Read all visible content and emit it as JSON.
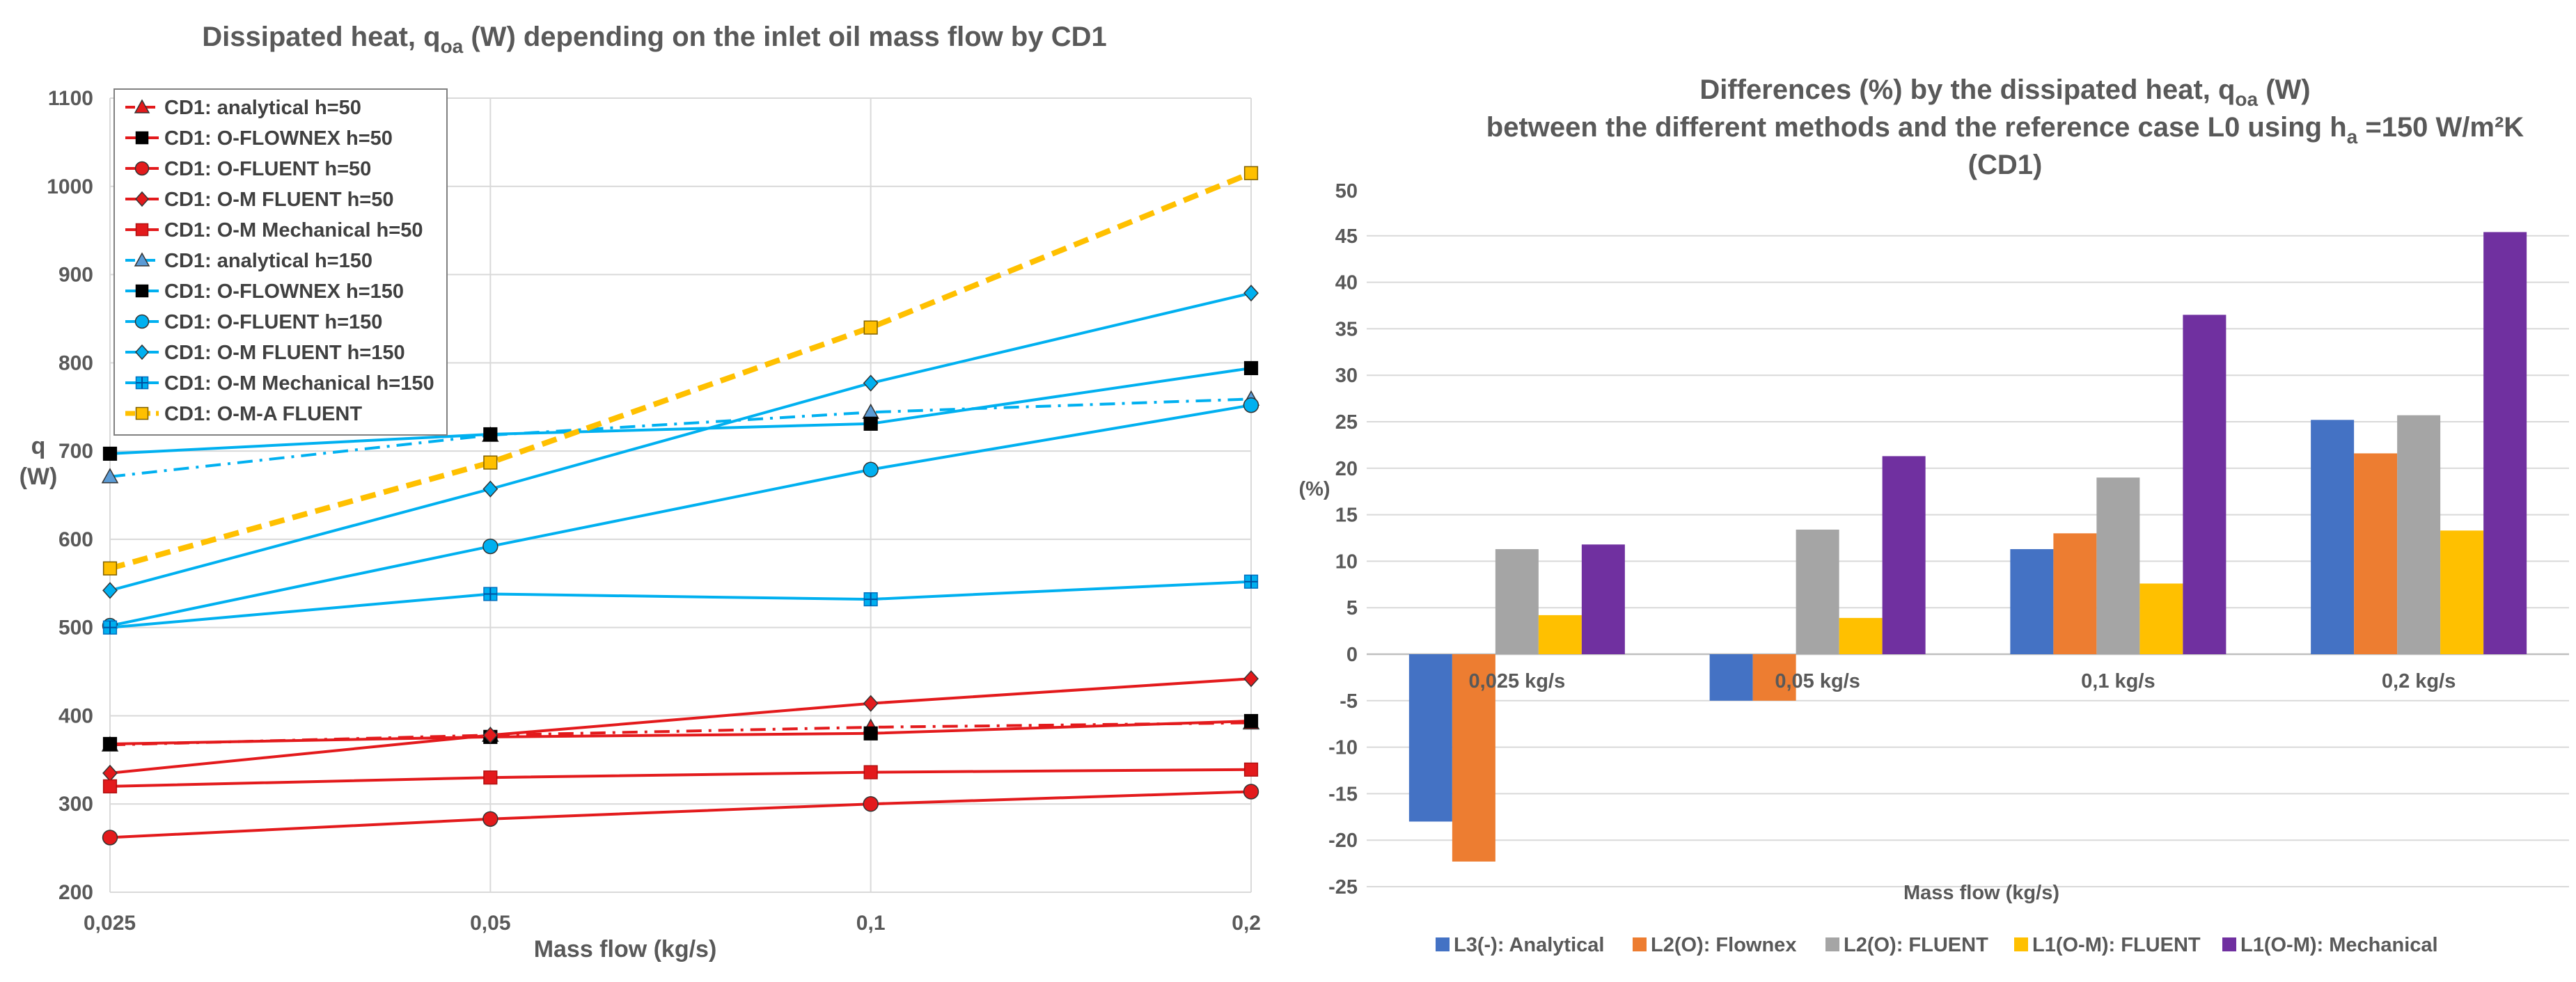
{
  "chart_data": [
    {
      "type": "line",
      "title": "Dissipated heat, q",
      "title_sub": "oa",
      "title_rest": " (W) depending on the inlet oil mass flow by CD1",
      "xlabel": "Mass flow (kg/s)",
      "ylabel_line1": "q",
      "ylabel_line2": "(W)",
      "categories": [
        "0,025",
        "0,05",
        "0,1",
        "0,2"
      ],
      "ylim": [
        200,
        1100
      ],
      "yticks": [
        "200",
        "300",
        "400",
        "500",
        "600",
        "700",
        "800",
        "900",
        "1000",
        "1100"
      ],
      "legend_position": "top-left",
      "series": [
        {
          "name": "CD1: analytical h=50",
          "color": "#e31a1c",
          "marker": "triangle",
          "marker_fill": "#e31a1c",
          "dash": "dashdot",
          "values": [
            367,
            378,
            387,
            392
          ]
        },
        {
          "name": "CD1: O-FLOWNEX h=50",
          "color": "#e31a1c",
          "marker": "square",
          "marker_fill": "#000000",
          "dash": "solid",
          "values": [
            368,
            376,
            380,
            394
          ]
        },
        {
          "name": "CD1: O-FLUENT h=50",
          "color": "#e31a1c",
          "marker": "circle",
          "marker_fill": "#e31a1c",
          "dash": "solid",
          "values": [
            262,
            283,
            300,
            314
          ]
        },
        {
          "name": "CD1: O-M FLUENT h=50",
          "color": "#e31a1c",
          "marker": "diamond",
          "marker_fill": "#e31a1c",
          "dash": "solid",
          "values": [
            335,
            378,
            414,
            442
          ]
        },
        {
          "name": "CD1: O-M Mechanical h=50",
          "color": "#e31a1c",
          "marker": "square",
          "marker_fill": "#e31a1c",
          "dash": "solid",
          "values": [
            320,
            330,
            336,
            339
          ]
        },
        {
          "name": "CD1: analytical h=150",
          "color": "#00b0f0",
          "marker": "triangle",
          "marker_fill": "#5b9bd5",
          "dash": "dashdot",
          "values": [
            671,
            718,
            744,
            759
          ]
        },
        {
          "name": "CD1: O-FLOWNEX h=150",
          "color": "#00b0f0",
          "marker": "square",
          "marker_fill": "#000000",
          "dash": "solid",
          "values": [
            697,
            719,
            731,
            794
          ]
        },
        {
          "name": "CD1: O-FLUENT h=150",
          "color": "#00b0f0",
          "marker": "circle",
          "marker_fill": "#00b0f0",
          "dash": "solid",
          "values": [
            502,
            592,
            679,
            752
          ]
        },
        {
          "name": "CD1: O-M FLUENT h=150",
          "color": "#00b0f0",
          "marker": "diamond",
          "marker_fill": "#00b0f0",
          "dash": "solid",
          "values": [
            542,
            657,
            777,
            879
          ]
        },
        {
          "name": "CD1: O-M Mechanical h=150",
          "color": "#00b0f0",
          "marker": "plus",
          "marker_fill": "#00b0f0",
          "dash": "solid",
          "values": [
            500,
            538,
            532,
            552
          ]
        },
        {
          "name": "CD1: O-M-A FLUENT",
          "color": "#ffc000",
          "marker": "square",
          "marker_fill": "#ffc000",
          "dash": "dash",
          "values": [
            567,
            687,
            840,
            1015
          ]
        }
      ]
    },
    {
      "type": "bar",
      "title_line1_pre": "Differences (%) by the dissipated heat, q",
      "title_line1_sub": "oa",
      "title_line1_post": " (W)",
      "title_line2_pre": "between the different methods and the reference case L0  using h",
      "title_line2_sub": "a",
      "title_line2_post": " =150 W/m²K",
      "title_line3": "(CD1)",
      "xlabel": "Mass flow (kg/s)",
      "ylabel": "(%)",
      "categories": [
        "0,025 kg/s",
        "0,05 kg/s",
        "0,1 kg/s",
        "0,2 kg/s"
      ],
      "ylim": [
        -25,
        50
      ],
      "yticks": [
        "-25",
        "-20",
        "-15",
        "-10",
        "-5",
        "0",
        "5",
        "10",
        "15",
        "20",
        "25",
        "30",
        "35",
        "40",
        "45",
        "50"
      ],
      "legend_position": "bottom",
      "series": [
        {
          "name": "L3(-): Analytical",
          "color": "#4472c4",
          "values": [
            -18,
            -5,
            11.3,
            25.2
          ]
        },
        {
          "name": "L2(O): Flownex",
          "color": "#ed7d31",
          "values": [
            -22.3,
            -5,
            13,
            21.6
          ]
        },
        {
          "name": "L2(O): FLUENT",
          "color": "#a5a5a5",
          "values": [
            11.3,
            13.4,
            19,
            25.7
          ]
        },
        {
          "name": "L1(O-M): FLUENT",
          "color": "#ffc000",
          "values": [
            4.2,
            3.9,
            7.6,
            13.3
          ]
        },
        {
          "name": "L1(O-M): Mechanical",
          "color": "#7030a0",
          "values": [
            11.8,
            21.3,
            36.5,
            45.4
          ]
        }
      ]
    }
  ]
}
